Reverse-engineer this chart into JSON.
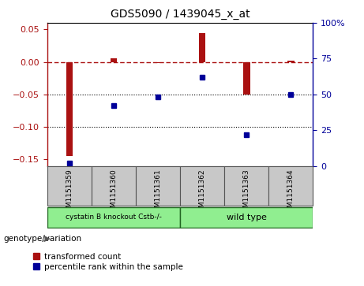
{
  "title": "GDS5090 / 1439045_x_at",
  "samples": [
    "GSM1151359",
    "GSM1151360",
    "GSM1151361",
    "GSM1151362",
    "GSM1151363",
    "GSM1151364"
  ],
  "transformed_count": [
    -0.145,
    0.005,
    -0.002,
    0.044,
    -0.05,
    0.002
  ],
  "percentile_rank": [
    2,
    42,
    48,
    62,
    22,
    50
  ],
  "group1_samples": [
    0,
    1,
    2
  ],
  "group2_samples": [
    3,
    4,
    5
  ],
  "group1_label": "cystatin B knockout Cstb-/-",
  "group2_label": "wild type",
  "group1_color": "#90ee90",
  "group2_color": "#90ee90",
  "bar_color": "#aa1111",
  "dot_color": "#000099",
  "ylim_left": [
    -0.16,
    0.06
  ],
  "ylim_right": [
    0,
    100
  ],
  "y_ticks_left": [
    -0.15,
    -0.1,
    -0.05,
    0.0,
    0.05
  ],
  "y_ticks_right": [
    0,
    25,
    50,
    75,
    100
  ],
  "dotted_lines": [
    -0.05,
    -0.1
  ],
  "legend_red": "transformed count",
  "legend_blue": "percentile rank within the sample",
  "genotype_label": "genotype/variation",
  "background_color": "#ffffff",
  "box_bg": "#c8c8c8",
  "bar_width": 0.15,
  "dot_size": 5
}
